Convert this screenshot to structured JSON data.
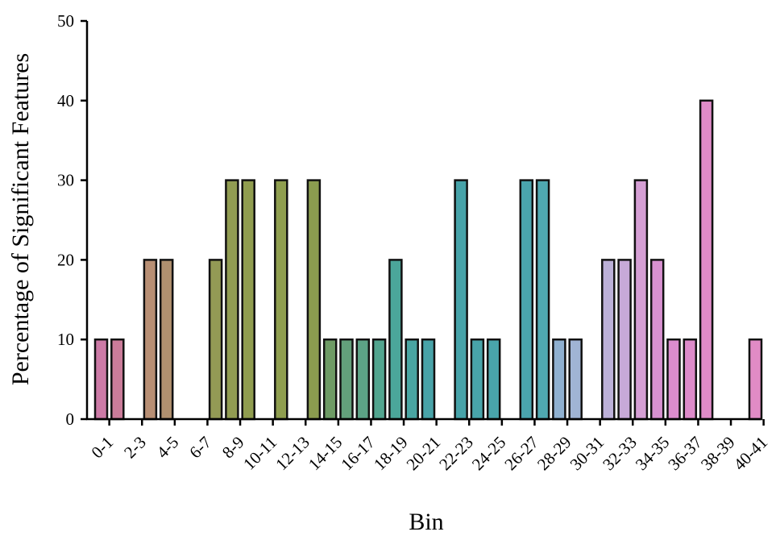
{
  "chart_data": {
    "type": "bar",
    "xlabel": "Bin",
    "ylabel": "Percentage of Significant Features",
    "ylim": [
      0,
      50
    ],
    "yticks": [
      0,
      10,
      20,
      30,
      40,
      50
    ],
    "grid": false,
    "tick_labels": [
      "0-1",
      "2-3",
      "4-5",
      "6-7",
      "8-9",
      "10-11",
      "12-13",
      "14-15",
      "16-17",
      "18-19",
      "20-21",
      "22-23",
      "24-25",
      "26-27",
      "28-29",
      "30-31",
      "32-33",
      "34-35",
      "36-37",
      "38-39",
      "40-41"
    ],
    "values": [
      10,
      10,
      0,
      20,
      20,
      0,
      0,
      20,
      30,
      30,
      0,
      30,
      0,
      30,
      10,
      10,
      10,
      10,
      20,
      10,
      10,
      0,
      30,
      10,
      10,
      0,
      30,
      30,
      10,
      10,
      0,
      20,
      20,
      30,
      20,
      10,
      10,
      40,
      0,
      0,
      10
    ],
    "colors": [
      "#cc7aa6",
      "#cb7c9a",
      "#c9847f",
      "#b88f74",
      "#b0906f",
      "#9f945b",
      "#9a965a",
      "#939a55",
      "#919c52",
      "#909d4f",
      "#8e9e4e",
      "#8f9e4f",
      "#8d9d50",
      "#8b9c4f",
      "#6e9b65",
      "#63a07b",
      "#5ca386",
      "#52a58f",
      "#4ba69a",
      "#49a5a2",
      "#48a3a8",
      "#47a3a8",
      "#47a3a9",
      "#48a4aa",
      "#49a4ab",
      "#49a4ac",
      "#4aa4ad",
      "#4fa8b0",
      "#8fb0d0",
      "#a0b4d4",
      "#b0b0d6",
      "#bcb0d8",
      "#c7a9d8",
      "#d59fd4",
      "#d891d0",
      "#db8ccd",
      "#dd8bca",
      "#e08bc8",
      "#e18bc7",
      "#e18bc6",
      "#e18bc5"
    ]
  }
}
